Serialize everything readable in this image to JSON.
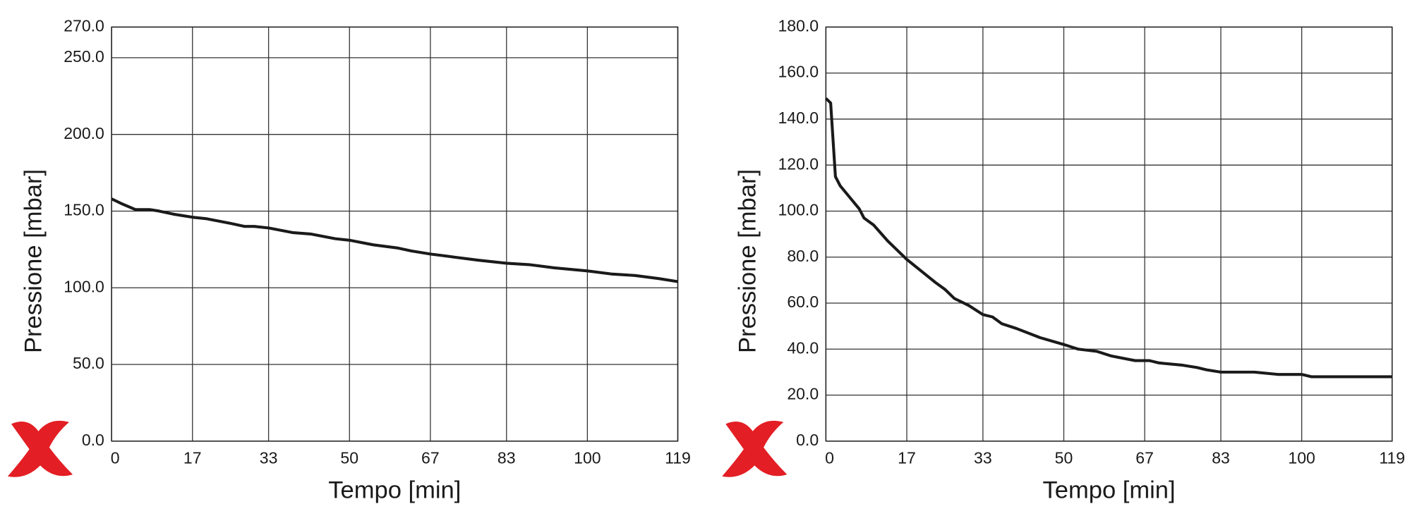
{
  "chart_data": [
    {
      "type": "line",
      "x_label": "Tempo [min]",
      "y_label": "Pressione [mbar]",
      "xlim": [
        0,
        119
      ],
      "xticks": [
        0,
        17,
        33,
        50,
        67,
        83,
        100,
        119
      ],
      "ylim": [
        0,
        270
      ],
      "yticks": [
        {
          "value": 0,
          "label": "0.0"
        },
        {
          "value": 50,
          "label": "50.0"
        },
        {
          "value": 100,
          "label": "100.0"
        },
        {
          "value": 150,
          "label": "150.0"
        },
        {
          "value": 200,
          "label": "200.0"
        },
        {
          "value": 250,
          "label": "250.0"
        },
        {
          "value": 270,
          "label": "270.0"
        }
      ],
      "grid": true,
      "series": [
        {
          "color": "#1a1a1a",
          "x": [
            0,
            2,
            5,
            8,
            10,
            13,
            17,
            20,
            25,
            28,
            30,
            33,
            38,
            42,
            47,
            50,
            55,
            60,
            63,
            67,
            72,
            77,
            83,
            88,
            93,
            100,
            105,
            110,
            115,
            119
          ],
          "values": [
            158,
            155,
            151,
            151,
            150,
            148,
            146,
            145,
            142,
            140,
            140,
            139,
            136,
            135,
            132,
            131,
            128,
            126,
            124,
            122,
            120,
            118,
            116,
            115,
            113,
            111,
            109,
            108,
            106,
            104
          ]
        }
      ]
    },
    {
      "type": "line",
      "x_label": "Tempo [min]",
      "y_label": "Pressione [mbar]",
      "xlim": [
        0,
        119
      ],
      "xticks": [
        0,
        17,
        33,
        50,
        67,
        83,
        100,
        119
      ],
      "ylim": [
        0,
        180
      ],
      "yticks": [
        {
          "value": 0,
          "label": "0.0"
        },
        {
          "value": 20,
          "label": "20.0"
        },
        {
          "value": 40,
          "label": "40.0"
        },
        {
          "value": 60,
          "label": "60.0"
        },
        {
          "value": 80,
          "label": "80.0"
        },
        {
          "value": 100,
          "label": "100.0"
        },
        {
          "value": 120,
          "label": "120.0"
        },
        {
          "value": 140,
          "label": "140.0"
        },
        {
          "value": 160,
          "label": "160.0"
        },
        {
          "value": 180,
          "label": "180.0"
        }
      ],
      "grid": true,
      "series": [
        {
          "color": "#1a1a1a",
          "x": [
            0,
            1,
            2,
            3,
            5,
            7,
            8,
            10,
            13,
            15,
            17,
            20,
            23,
            25,
            27,
            30,
            33,
            35,
            37,
            40,
            45,
            50,
            53,
            57,
            60,
            65,
            68,
            70,
            75,
            78,
            80,
            83,
            90,
            95,
            100,
            102,
            119
          ],
          "values": [
            149,
            147,
            115,
            111,
            106,
            101,
            97,
            94,
            87,
            83,
            79,
            74,
            69,
            66,
            62,
            59,
            55,
            54,
            51,
            49,
            45,
            42,
            40,
            39,
            37,
            35,
            35,
            34,
            33,
            32,
            31,
            30,
            30,
            29,
            29,
            28,
            28
          ]
        }
      ]
    }
  ]
}
